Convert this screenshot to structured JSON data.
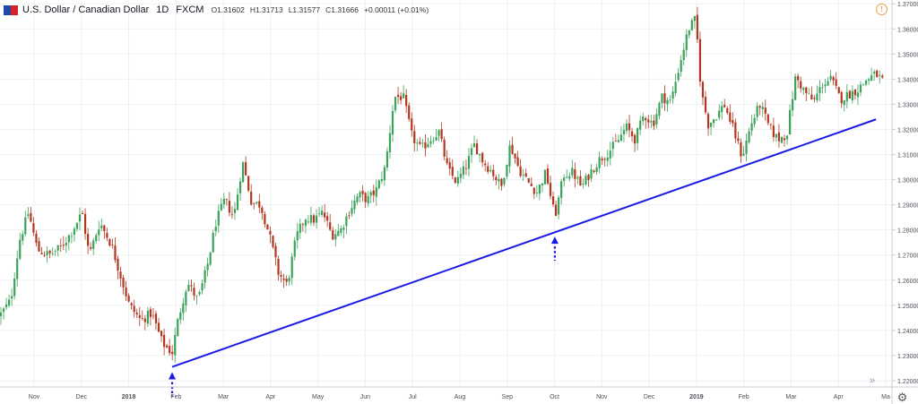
{
  "legend": {
    "symbol": "U.S. Dollar / Canadian Dollar",
    "interval": "1D",
    "exchange": "FXCM",
    "open": "O1.31602",
    "high": "H1.31713",
    "low": "L1.31577",
    "close": "C1.31666",
    "change": "+0.00011 (+0.01%)"
  },
  "icons": {
    "alert": "alert-clock-icon",
    "scroll": "scroll-to-realtime-icon",
    "settings": "gear-icon"
  },
  "colors": {
    "up": "#3aa35a",
    "down": "#b5361f",
    "trendline": "#1a1ae6",
    "arrow": "#1a1ae6"
  },
  "chart_data": {
    "type": "candlestick",
    "title": "U.S. Dollar / Canadian Dollar",
    "ylim": [
      1.2175,
      1.3715
    ],
    "yticks": [
      "1.22000",
      "1.23000",
      "1.24000",
      "1.25000",
      "1.26000",
      "1.27000",
      "1.28000",
      "1.29000",
      "1.30000",
      "1.31000",
      "1.32000",
      "1.33000",
      "1.34000",
      "1.35000",
      "1.36000",
      "1.37000"
    ],
    "xticks": [
      "Nov",
      "Dec",
      "2018",
      "Feb",
      "Mar",
      "Apr",
      "May",
      "Jun",
      "Jul",
      "Aug",
      "Sep",
      "Oct",
      "Nov",
      "Dec",
      "2019",
      "Feb",
      "Mar",
      "Apr",
      "Ma"
    ],
    "x_range": [
      0,
      1000
    ],
    "close_path": [
      [
        0,
        1.246
      ],
      [
        12,
        1.252
      ],
      [
        22,
        1.276
      ],
      [
        32,
        1.287
      ],
      [
        42,
        1.272
      ],
      [
        55,
        1.27
      ],
      [
        68,
        1.273
      ],
      [
        80,
        1.279
      ],
      [
        92,
        1.287
      ],
      [
        100,
        1.27
      ],
      [
        112,
        1.283
      ],
      [
        125,
        1.274
      ],
      [
        135,
        1.262
      ],
      [
        145,
        1.25
      ],
      [
        158,
        1.244
      ],
      [
        170,
        1.247
      ],
      [
        182,
        1.235
      ],
      [
        193,
        1.231
      ],
      [
        200,
        1.245
      ],
      [
        210,
        1.259
      ],
      [
        222,
        1.252
      ],
      [
        232,
        1.265
      ],
      [
        242,
        1.283
      ],
      [
        252,
        1.292
      ],
      [
        262,
        1.285
      ],
      [
        272,
        1.307
      ],
      [
        282,
        1.291
      ],
      [
        292,
        1.29
      ],
      [
        302,
        1.278
      ],
      [
        312,
        1.263
      ],
      [
        322,
        1.258
      ],
      [
        332,
        1.277
      ],
      [
        342,
        1.285
      ],
      [
        352,
        1.284
      ],
      [
        362,
        1.287
      ],
      [
        372,
        1.278
      ],
      [
        382,
        1.28
      ],
      [
        392,
        1.288
      ],
      [
        402,
        1.294
      ],
      [
        412,
        1.292
      ],
      [
        422,
        1.296
      ],
      [
        432,
        1.305
      ],
      [
        442,
        1.333
      ],
      [
        452,
        1.333
      ],
      [
        462,
        1.317
      ],
      [
        472,
        1.312
      ],
      [
        482,
        1.316
      ],
      [
        492,
        1.319
      ],
      [
        502,
        1.304
      ],
      [
        512,
        1.299
      ],
      [
        522,
        1.305
      ],
      [
        532,
        1.314
      ],
      [
        542,
        1.307
      ],
      [
        552,
        1.303
      ],
      [
        562,
        1.297
      ],
      [
        572,
        1.314
      ],
      [
        582,
        1.304
      ],
      [
        592,
        1.299
      ],
      [
        602,
        1.295
      ],
      [
        612,
        1.303
      ],
      [
        622,
        1.285
      ],
      [
        632,
        1.302
      ],
      [
        642,
        1.303
      ],
      [
        652,
        1.297
      ],
      [
        662,
        1.303
      ],
      [
        672,
        1.308
      ],
      [
        682,
        1.311
      ],
      [
        692,
        1.315
      ],
      [
        702,
        1.321
      ],
      [
        712,
        1.316
      ],
      [
        722,
        1.326
      ],
      [
        732,
        1.322
      ],
      [
        742,
        1.333
      ],
      [
        752,
        1.331
      ],
      [
        762,
        1.346
      ],
      [
        772,
        1.36
      ],
      [
        780,
        1.364
      ],
      [
        786,
        1.335
      ],
      [
        794,
        1.322
      ],
      [
        802,
        1.325
      ],
      [
        812,
        1.33
      ],
      [
        822,
        1.32
      ],
      [
        832,
        1.309
      ],
      [
        842,
        1.322
      ],
      [
        852,
        1.33
      ],
      [
        862,
        1.321
      ],
      [
        872,
        1.316
      ],
      [
        882,
        1.318
      ],
      [
        892,
        1.341
      ],
      [
        902,
        1.335
      ],
      [
        912,
        1.331
      ],
      [
        922,
        1.338
      ],
      [
        932,
        1.34
      ],
      [
        942,
        1.332
      ],
      [
        952,
        1.334
      ],
      [
        962,
        1.336
      ],
      [
        972,
        1.34
      ],
      [
        982,
        1.342
      ],
      [
        990,
        1.339
      ]
    ],
    "trendline": [
      [
        193,
        1.2255
      ],
      [
        982,
        1.324
      ]
    ],
    "annotations": [
      {
        "type": "arrow-up-dotted",
        "x": 193,
        "y": 1.2255
      },
      {
        "type": "arrow-up-dotted",
        "x": 622,
        "y": 1.2795
      }
    ]
  }
}
